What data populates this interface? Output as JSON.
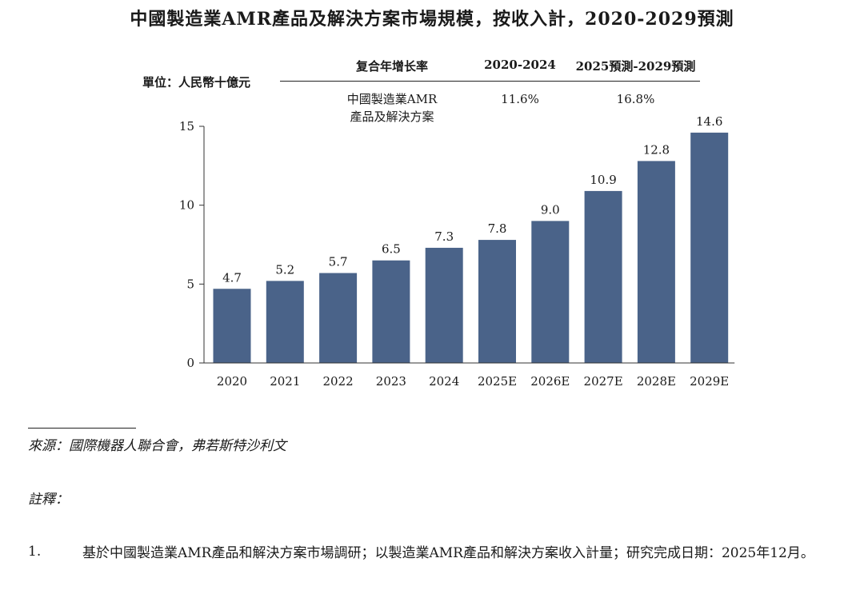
{
  "title": "中國製造業AMR產品及解決方案市場規模，按收入計，2020-2029預測",
  "unit_label": "單位：人民幣十億元",
  "cagr_table": {
    "header_label": "复合年增长率",
    "col1": "2020-2024",
    "col2": "2025預測-2029預測",
    "row_label_line1": "中國製造業AMR",
    "row_label_line2": "產品及解決方案",
    "val1": "11.6%",
    "val2": "16.8%"
  },
  "chart_data": {
    "type": "bar",
    "title": "中國製造業AMR產品及解決方案市場規模，按收入計，2020-2029預測",
    "xlabel": "",
    "ylabel": "單位：人民幣十億元",
    "categories": [
      "2020",
      "2021",
      "2022",
      "2023",
      "2024",
      "2025E",
      "2026E",
      "2027E",
      "2028E",
      "2029E"
    ],
    "values": [
      4.7,
      5.2,
      5.7,
      6.5,
      7.3,
      7.8,
      9.0,
      10.9,
      12.8,
      14.6
    ],
    "value_labels": [
      "4.7",
      "5.2",
      "5.7",
      "6.5",
      "7.3",
      "7.8",
      "9.0",
      "10.9",
      "12.8",
      "14.6"
    ],
    "ylim": [
      0,
      15
    ],
    "yticks": [
      0,
      5,
      10,
      15
    ],
    "grid": false,
    "bar_color": "#4a6389"
  },
  "source": "來源：國際機器人聯合會，弗若斯特沙利文",
  "notes_label": "註釋：",
  "notes": [
    {
      "num": "1.",
      "text": "基於中國製造業AMR產品和解決方案市場調研；以製造業AMR產品和解決方案收入計量；研究完成日期：2025年12月。"
    }
  ]
}
